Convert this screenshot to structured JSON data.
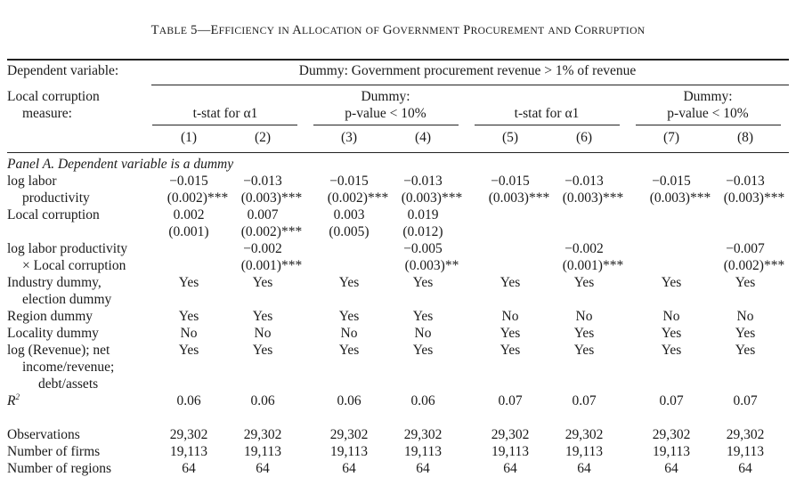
{
  "table": {
    "title": {
      "prefix": "T",
      "prefix_sc": "ABLE",
      "number_dash": " 5—",
      "words": [
        {
          "cap": "E",
          "sc": "FFICIENCY"
        },
        {
          "cap": "",
          "sc": "IN"
        },
        {
          "cap": "A",
          "sc": "LLOCATION"
        },
        {
          "cap": "",
          "sc": "OF"
        },
        {
          "cap": "G",
          "sc": "OVERNMENT"
        },
        {
          "cap": "P",
          "sc": "ROCUREMENT"
        },
        {
          "cap": "",
          "sc": "AND"
        },
        {
          "cap": "C",
          "sc": "ORRUPTION"
        }
      ]
    },
    "header": {
      "dependent_variable_label": "Dependent variable:",
      "dependent_variable_value": "Dummy: Government procurement revenue > 1% of revenue",
      "measure_label_1": "Local corruption",
      "measure_label_2": "measure:",
      "measure_groups": [
        {
          "line1": "",
          "line2": "t-stat for α1"
        },
        {
          "line1": "Dummy:",
          "line2": "p-value < 10%"
        },
        {
          "line1": "",
          "line2": "t-stat for α1"
        },
        {
          "line1": "Dummy:",
          "line2": "p-value < 10%"
        }
      ],
      "column_numbers": [
        "(1)",
        "(2)",
        "(3)",
        "(4)",
        "(5)",
        "(6)",
        "(7)",
        "(8)"
      ]
    },
    "panel_label": "Panel A. Dependent variable is a dummy",
    "rows": {
      "log_labor_productivity": {
        "label_1": "log labor",
        "label_2": "productivity",
        "coef": [
          "−0.015",
          "−0.013",
          "−0.015",
          "−0.013",
          "−0.015",
          "−0.013",
          "−0.015",
          "−0.013"
        ],
        "se": [
          "(0.002)***",
          "(0.003)***",
          "(0.002)***",
          "(0.003)***",
          "(0.003)***",
          "(0.003)***",
          "(0.003)***",
          "(0.003)***"
        ]
      },
      "local_corruption": {
        "label": "Local corruption",
        "coef": [
          "0.002",
          "0.007",
          "0.003",
          "0.019",
          "",
          "",
          "",
          ""
        ],
        "se": [
          "(0.001)",
          "(0.002)***",
          "(0.005)",
          "(0.012)",
          "",
          "",
          "",
          ""
        ]
      },
      "interaction": {
        "label_1": "log labor productivity",
        "label_2": "× Local corruption",
        "coef": [
          "",
          "−0.002",
          "",
          "−0.005",
          "",
          "−0.002",
          "",
          "−0.007"
        ],
        "se": [
          "",
          "(0.001)***",
          "",
          "(0.003)**",
          "",
          "(0.001)***",
          "",
          "(0.002)***"
        ]
      },
      "industry_dummy": {
        "label_1": "Industry dummy,",
        "label_2": "election dummy",
        "values": [
          "Yes",
          "Yes",
          "Yes",
          "Yes",
          "Yes",
          "Yes",
          "Yes",
          "Yes"
        ]
      },
      "region_dummy": {
        "label": "Region dummy",
        "values": [
          "Yes",
          "Yes",
          "Yes",
          "Yes",
          "No",
          "No",
          "No",
          "No"
        ]
      },
      "locality_dummy": {
        "label": "Locality dummy",
        "values": [
          "No",
          "No",
          "No",
          "No",
          "Yes",
          "Yes",
          "Yes",
          "Yes"
        ]
      },
      "log_revenue": {
        "label_1": "log (Revenue); net",
        "label_2": "income/revenue;",
        "label_3": "debt/assets",
        "values": [
          "Yes",
          "Yes",
          "Yes",
          "Yes",
          "Yes",
          "Yes",
          "Yes",
          "Yes"
        ]
      },
      "r2": {
        "label": "R",
        "label_sup": "2",
        "values": [
          "0.06",
          "0.06",
          "0.06",
          "0.06",
          "0.07",
          "0.07",
          "0.07",
          "0.07"
        ]
      },
      "observations": {
        "label": "Observations",
        "values": [
          "29,302",
          "29,302",
          "29,302",
          "29,302",
          "29,302",
          "29,302",
          "29,302",
          "29,302"
        ]
      },
      "firms": {
        "label": "Number of firms",
        "values": [
          "19,113",
          "19,113",
          "19,113",
          "19,113",
          "19,113",
          "19,113",
          "19,113",
          "19,113"
        ]
      },
      "regions": {
        "label": "Number of regions",
        "values": [
          "64",
          "64",
          "64",
          "64",
          "64",
          "64",
          "64",
          "64"
        ]
      }
    }
  }
}
